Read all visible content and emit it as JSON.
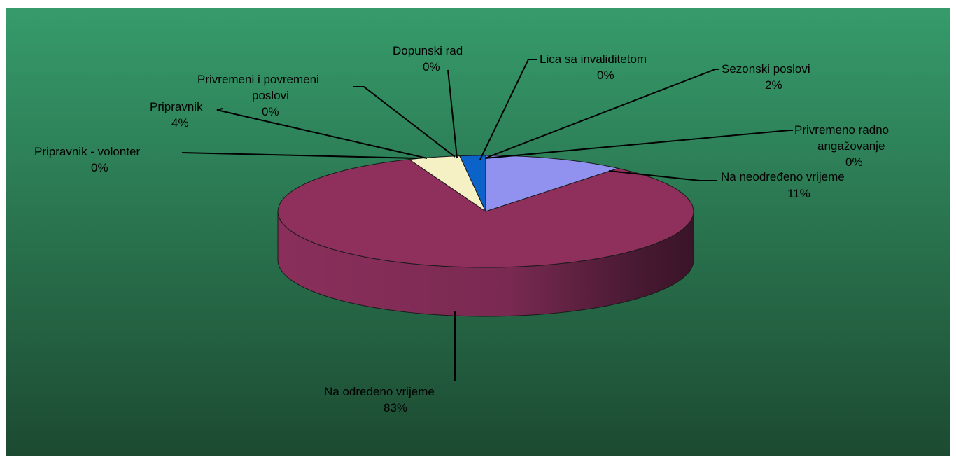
{
  "chart_data": {
    "type": "pie",
    "style": "3d-pie",
    "title": "",
    "slices": [
      {
        "label": "Na neodređeno vrijeme",
        "percent_label": "11%",
        "value": 11,
        "color": "#9191f0"
      },
      {
        "label": "Na određeno vrijeme",
        "percent_label": "83%",
        "value": 83,
        "color": "#8e2f5c"
      },
      {
        "label": "Pripravnik - volonter",
        "percent_label": "0%",
        "value": 0,
        "color": "#8e2f5c"
      },
      {
        "label": "Pripravnik",
        "percent_label": "4%",
        "value": 4,
        "color": "#f6f1c4"
      },
      {
        "label": "Privremeni i povremeni poslovi",
        "percent_label": "0%",
        "value": 0,
        "color": "#cde6f7"
      },
      {
        "label": "Dopunski rad",
        "percent_label": "0%",
        "value": 0,
        "color": "#6a1f6a"
      },
      {
        "label": "Sezonski poslovi",
        "percent_label": "2%",
        "value": 2,
        "color": "#0b62c9"
      },
      {
        "label": "Lica sa invaliditetom",
        "percent_label": "0%",
        "value": 0,
        "color": "#ffffff"
      },
      {
        "label": "Privremeno radno angažovanje",
        "percent_label": "0%",
        "value": 0,
        "color": "#c9c9f5"
      }
    ],
    "background": {
      "top_color": "#369b6b",
      "bottom_color": "#1c4a31"
    },
    "legend": "none",
    "grid": false
  }
}
